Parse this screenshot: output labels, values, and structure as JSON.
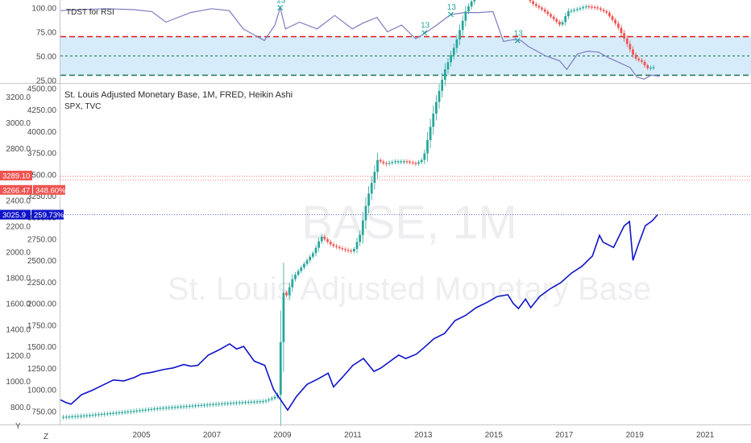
{
  "chart_data": [
    {
      "type": "line",
      "indicator_label": "TDST for RSI",
      "y_ticks": [
        "100.00",
        "75.00",
        "50.00",
        "25.00"
      ],
      "ylim": [
        22,
        108
      ],
      "band": [
        30,
        70
      ],
      "band_color": "#d7ecfb",
      "line_color": "#7e7cc0",
      "x_range": [
        2002.7,
        2019.75
      ],
      "series": [
        {
          "x": [
            2002.7,
            2003.3,
            2004,
            2004.8,
            2005.3,
            2005.7,
            2006.4,
            2007,
            2007.5,
            2007.9,
            2008.2,
            2008.5,
            2008.8,
            2008.95,
            2009.1,
            2009.5,
            2010,
            2010.5,
            2011,
            2011.3,
            2011.7,
            2012.0,
            2012.4,
            2012.8,
            2013.0,
            2013.4,
            2013.8,
            2014.2,
            2014.6,
            2015.0,
            2015.3,
            2015.6,
            2015.8,
            2016.0,
            2016.5,
            2016.9,
            2017.1,
            2017.4,
            2017.7,
            2018.0,
            2018.3,
            2018.6,
            2018.9,
            2019.1,
            2019.3,
            2019.5,
            2019.75
          ],
          "y": [
            97,
            98,
            99,
            98,
            96,
            85,
            95,
            99,
            97,
            78,
            72,
            66,
            82,
            100,
            78,
            85,
            78,
            92,
            78,
            84,
            90,
            75,
            82,
            68,
            72,
            82,
            93,
            95,
            95,
            96,
            65,
            67,
            66,
            60,
            50,
            45,
            36,
            52,
            55,
            54,
            48,
            43,
            38,
            28,
            26,
            30,
            29
          ]
        }
      ],
      "marks": [
        {
          "x": 2008.95,
          "y": 100,
          "label": "13"
        },
        {
          "x": 2013.05,
          "y": 74,
          "label": "13"
        },
        {
          "x": 2013.8,
          "y": 93,
          "label": "13"
        },
        {
          "x": 2015.7,
          "y": 66,
          "label": "13"
        }
      ],
      "hlines": [
        {
          "y": 70,
          "color": "#e0191c",
          "style": "long-dash"
        },
        {
          "y": 50,
          "color": "#2a7d5e",
          "style": "short-dash"
        },
        {
          "y": 30,
          "color": "#2a7d5e",
          "style": "long-dash"
        }
      ]
    },
    {
      "type": "candlestick",
      "title": "St. Louis Adjusted Monetary Base, 1M, FRED, Heikin Ashi",
      "second_symbol": "SPX, TVC",
      "watermark_symbol": "BASE, 1M",
      "watermark_name": "St. Louis Adjusted Monetary Base",
      "x_ticks": [
        "2005",
        "2007",
        "2009",
        "2011",
        "2013",
        "2015",
        "2017",
        "2019",
        "2021"
      ],
      "x_range": [
        2002.7,
        2022.3
      ],
      "y_left_ticks": [
        "3200.0",
        "3000.0",
        "2800.0",
        "2600.0",
        "2400.0",
        "2200.0",
        "2000.0",
        "1800.0",
        "1600.0",
        "1400.0",
        "1200.0",
        "1000.0",
        "800.0"
      ],
      "y_left_range": [
        700,
        3300
      ],
      "y_right_ticks": [
        "4500.00",
        "4250.00",
        "4000.00",
        "3750.00",
        "3500.00",
        "3250.00",
        "3000.00",
        "2750.00",
        "2500.00",
        "2250.00",
        "2000.00",
        "1750.00",
        "1500.00",
        "1250.00",
        "1000.00",
        "750.00"
      ],
      "y_right_range": [
        650,
        4550
      ],
      "up_color": "#26a69a",
      "down_color": "#ef5350",
      "spx_color": "#0f14c8",
      "monetary_base": {
        "x": [
          2002.7,
          2003.5,
          2004.5,
          2005.5,
          2006.5,
          2007.5,
          2008.5,
          2008.75,
          2008.9,
          2009.0,
          2009.1,
          2009.3,
          2009.6,
          2009.9,
          2010.1,
          2010.4,
          2010.7,
          2011.0,
          2011.2,
          2011.4,
          2011.6,
          2011.7,
          2011.9,
          2012.2,
          2012.5,
          2012.8,
          2013.0,
          2013.3,
          2013.6,
          2013.9,
          2014.2,
          2014.5,
          2014.7,
          2015.0,
          2015.3,
          2015.6,
          2015.9,
          2016.1,
          2016.4,
          2016.7,
          2016.9,
          2017.1,
          2017.4,
          2017.6,
          2017.9,
          2018.2,
          2018.5,
          2018.8,
          2019.0,
          2019.2,
          2019.35,
          2019.55
        ],
        "y": [
          720,
          735,
          760,
          790,
          810,
          830,
          845,
          870,
          900,
          1700,
          1650,
          1800,
          1900,
          2000,
          2120,
          2050,
          2020,
          2000,
          2130,
          2400,
          2600,
          2710,
          2680,
          2700,
          2700,
          2680,
          2720,
          3090,
          3400,
          3600,
          3860,
          4000,
          4050,
          4030,
          4020,
          4040,
          3980,
          3920,
          3870,
          3800,
          3750,
          3860,
          3880,
          3900,
          3890,
          3850,
          3750,
          3600,
          3500,
          3470,
          3420,
          3430
        ]
      },
      "spx": {
        "x": [
          2002.7,
          2002.85,
          2003.0,
          2003.3,
          2003.6,
          2003.9,
          2004.2,
          2004.5,
          2004.8,
          2005.0,
          2005.3,
          2005.6,
          2005.9,
          2006.2,
          2006.4,
          2006.6,
          2006.9,
          2007.2,
          2007.5,
          2007.7,
          2007.9,
          2008.2,
          2008.5,
          2008.75,
          2008.95,
          2009.15,
          2009.4,
          2009.7,
          2010.0,
          2010.3,
          2010.45,
          2010.7,
          2011.0,
          2011.3,
          2011.6,
          2011.8,
          2012.0,
          2012.3,
          2012.5,
          2012.8,
          2013.0,
          2013.3,
          2013.6,
          2013.9,
          2014.2,
          2014.5,
          2014.8,
          2015.1,
          2015.4,
          2015.55,
          2015.7,
          2015.9,
          2016.05,
          2016.3,
          2016.6,
          2016.9,
          2017.2,
          2017.5,
          2017.8,
          2018.0,
          2018.1,
          2018.4,
          2018.7,
          2018.85,
          2018.95,
          2019.1,
          2019.3,
          2019.5,
          2019.65
        ],
        "y": [
          880,
          850,
          830,
          940,
          990,
          1050,
          1110,
          1100,
          1140,
          1180,
          1200,
          1230,
          1250,
          1290,
          1270,
          1280,
          1400,
          1460,
          1530,
          1470,
          1500,
          1330,
          1280,
          1000,
          880,
          760,
          920,
          1060,
          1120,
          1190,
          1030,
          1140,
          1280,
          1360,
          1210,
          1250,
          1310,
          1400,
          1360,
          1410,
          1480,
          1590,
          1650,
          1800,
          1860,
          1950,
          2010,
          2080,
          2100,
          2000,
          1940,
          2050,
          1950,
          2080,
          2170,
          2240,
          2350,
          2430,
          2550,
          2790,
          2710,
          2650,
          2900,
          2950,
          2500,
          2680,
          2900,
          2960,
          3030
        ]
      },
      "price_labels": [
        {
          "value": "3025.9",
          "sub": "259.73%",
          "axis": "left",
          "color": "#0f14c8"
        },
        {
          "value": "3289.10",
          "axis": "left",
          "color": "#ef5350"
        },
        {
          "value": "3266.47",
          "sub": "348.60%",
          "axis": "left",
          "color": "#ef5350"
        }
      ]
    }
  ],
  "bottom_buttons": [
    "Y",
    "Z"
  ]
}
